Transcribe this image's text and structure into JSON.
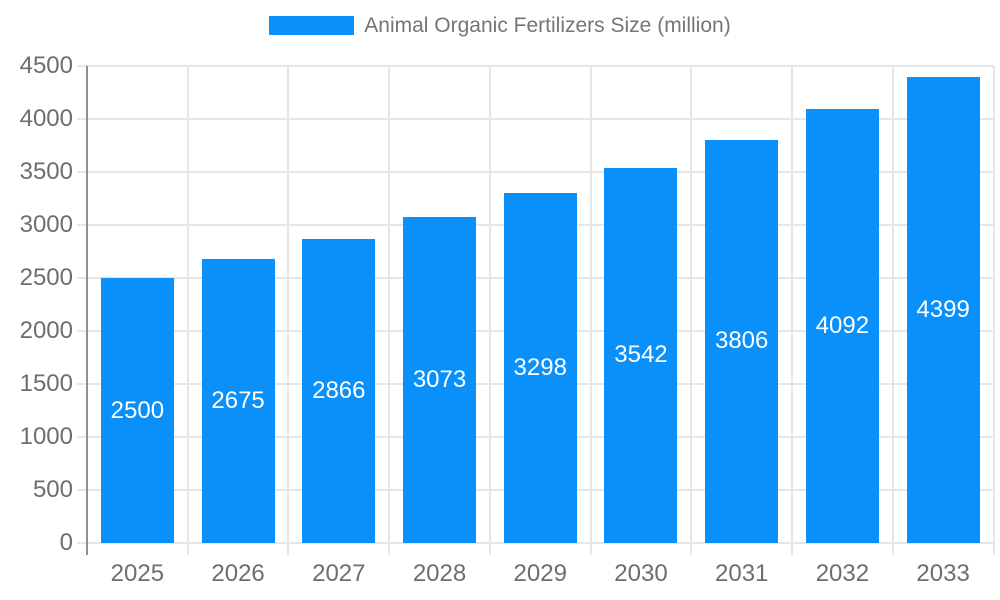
{
  "legend": {
    "label": "Animal Organic Fertilizers Size (million)"
  },
  "chart_data": {
    "type": "bar",
    "title": "Animal Organic Fertilizers Size (million)",
    "series_name": "Animal Organic Fertilizers Size (million)",
    "categories": [
      "2025",
      "2026",
      "2027",
      "2028",
      "2029",
      "2030",
      "2031",
      "2032",
      "2033"
    ],
    "values": [
      2500,
      2675,
      2866,
      3073,
      3298,
      3542,
      3806,
      4092,
      4399
    ],
    "xlabel": "",
    "ylabel": "",
    "ylim": [
      0,
      4500
    ],
    "ytick_step": 500,
    "ytick_labels": [
      "0",
      "500",
      "1000",
      "1500",
      "2000",
      "2500",
      "3000",
      "3500",
      "4000",
      "4500"
    ],
    "grid": true,
    "legend_position": "top",
    "value_label_position": "inside-center"
  },
  "colors": {
    "bar": "#0990fa",
    "bar_label": "#ffffff",
    "axis_text": "#6e6e6e",
    "legend_text": "#757575",
    "gridline": "#e6e6e6",
    "axis_line": "#8f8f8f",
    "background": "#ffffff"
  }
}
